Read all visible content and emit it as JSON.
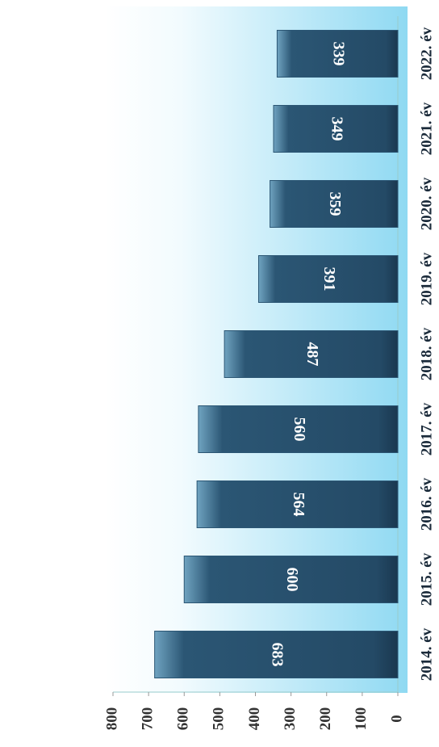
{
  "chart_data": {
    "type": "bar",
    "categories": [
      "2014. év",
      "2015. év",
      "2016. év",
      "2017. év",
      "2018. év",
      "2019. év",
      "2020. év",
      "2021. év",
      "2022. év"
    ],
    "values": [
      683,
      600,
      564,
      560,
      487,
      391,
      359,
      349,
      339
    ],
    "color": "#2b5674",
    "ylim": [
      0,
      800
    ],
    "yticks": [
      0,
      100,
      200,
      300,
      400,
      500,
      600,
      700,
      800
    ]
  }
}
